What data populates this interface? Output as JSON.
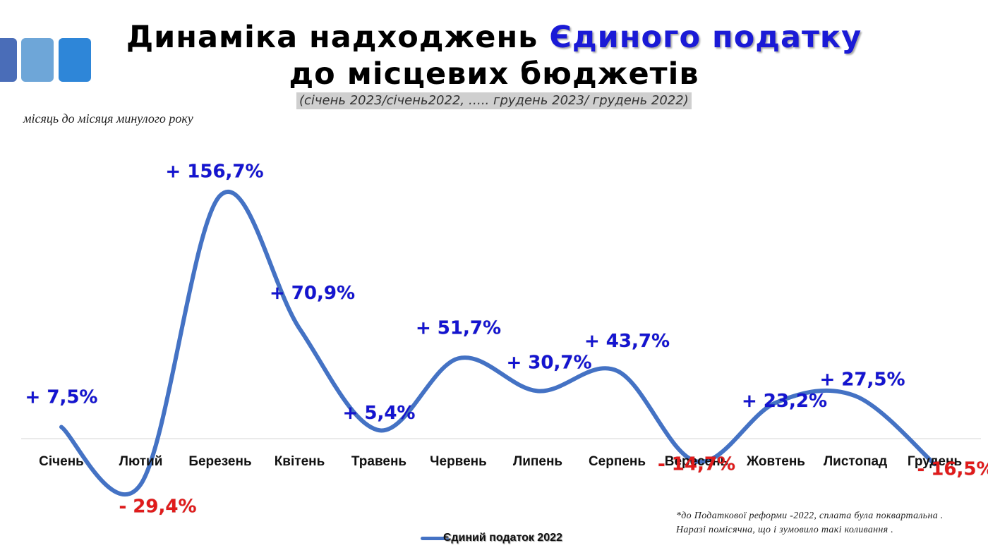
{
  "header": {
    "title_line1_prefix": "Динаміка надходжень",
    "title_line1_accent": "Єдиного податку",
    "title_line2": "до місцевих бюджетів",
    "subtitle": "(січень 2023/січень2022, ….. грудень 2023/ грудень 2022)"
  },
  "caption": "місяць до місяця минулого року",
  "footnote": {
    "line1": "*до Податкової реформи -2022, сплата була поквартальна .",
    "line2": "Наразі помісячна,  що і зумовило  такі коливання ."
  },
  "legend": {
    "label": "Єдиний податок 2022"
  },
  "colors": {
    "line": "#4472c4",
    "positive_label": "#1414d0",
    "negative_label": "#e01b1b",
    "title_accent": "#1a1ad6"
  },
  "chart_data": {
    "type": "line",
    "title": "Динаміка надходжень Єдиного податку до місцевих бюджетів",
    "categories": [
      "Січень",
      "Лютий",
      "Березень",
      "Квітень",
      "Травень",
      "Червень",
      "Липень",
      "Серпень",
      "Вересень",
      "Жовтень",
      "Листопад",
      "Грудень"
    ],
    "series": [
      {
        "name": "Єдиний податок 2022",
        "values": [
          7.5,
          -29.4,
          156.7,
          70.9,
          5.4,
          51.7,
          30.7,
          43.7,
          -14.7,
          23.2,
          27.5,
          -16.5
        ]
      }
    ],
    "data_labels": [
      "+ 7,5%",
      "- 29,4%",
      "+ 156,7%",
      "+ 70,9%",
      "+ 5,4%",
      "+ 51,7%",
      "+ 30,7%",
      "+ 43,7%",
      "- 14,7%",
      "+ 23,2%",
      "+ 27,5%",
      "- 16,5%"
    ],
    "xlabel": "",
    "ylabel": "",
    "ylim": [
      -40,
      165
    ],
    "grid": false,
    "legend_position": "bottom"
  }
}
